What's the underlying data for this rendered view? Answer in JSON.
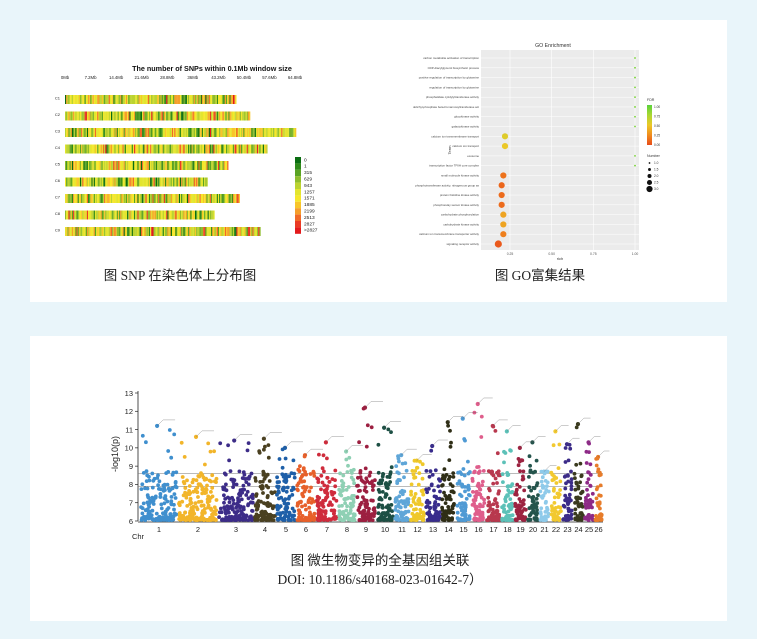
{
  "captions": {
    "snp": "图 SNP 在染色体上分布图",
    "go": "图 GO富集结果",
    "gwas": "图 微生物变异的全基因组关联",
    "doi": "DOI: 10.1186/s40168-023-01642-7）"
  },
  "chart_data": [
    {
      "type": "heatmap",
      "title": "The number of SNPs within 0.1Mb window size",
      "x_ticks": [
        "0Mb",
        "7.2Mb",
        "14.4Mb",
        "21.6Mb",
        "28.8Mb",
        "36Mb",
        "43.2Mb",
        "50.4Mb",
        "57.6Mb",
        "64.8Mb"
      ],
      "rows": [
        {
          "label": "C1",
          "length_mb": 48
        },
        {
          "label": "C2",
          "length_mb": 52
        },
        {
          "label": "C3",
          "length_mb": 65
        },
        {
          "label": "C4",
          "length_mb": 57
        },
        {
          "label": "C5",
          "length_mb": 46
        },
        {
          "label": "C6",
          "length_mb": 40
        },
        {
          "label": "C7",
          "length_mb": 49
        },
        {
          "label": "C8",
          "length_mb": 42
        },
        {
          "label": "C9",
          "length_mb": 55
        }
      ],
      "legend": {
        "labels": [
          "0",
          "1",
          "315",
          "629",
          "943",
          "1257",
          "1571",
          "1885",
          "2199",
          "2513",
          "2827",
          ">2827"
        ],
        "colors": [
          "#0b6d12",
          "#2f8a1a",
          "#5aa323",
          "#8fbd2c",
          "#bcd330",
          "#e3e52e",
          "#f6e72a",
          "#f8c52a",
          "#f59e2a",
          "#f06a28",
          "#ea3b24",
          "#e31a1c"
        ]
      }
    },
    {
      "type": "scatter",
      "title": "GO Enrichment",
      "xlabel": "rich",
      "ylabel": "Term",
      "x_ticks": [
        "0.25",
        "0.50",
        "0.75",
        "1.00"
      ],
      "xlim": [
        0.1,
        1.0
      ],
      "terms": [
        {
          "term": "carbon metabolite activation of transcription",
          "rich": 1.0,
          "fdr": 0.9,
          "number": 1
        },
        {
          "term": "CDP-diacylglycerol biosynthetic process",
          "rich": 1.0,
          "fdr": 0.9,
          "number": 1
        },
        {
          "term": "positive regulation of transcription by glutamine",
          "rich": 1.0,
          "fdr": 0.9,
          "number": 1
        },
        {
          "term": "regulation of transcription by glutamine",
          "rich": 1.0,
          "fdr": 0.9,
          "number": 1
        },
        {
          "term": "phosphatidate cytidylyltransferase activity",
          "rich": 1.0,
          "fdr": 0.9,
          "number": 1
        },
        {
          "term": "dolichyl-phosphate beta-D-mannosyltransferase act",
          "rich": 1.0,
          "fdr": 0.9,
          "number": 1
        },
        {
          "term": "glucokinase activity",
          "rich": 1.0,
          "fdr": 0.9,
          "number": 1
        },
        {
          "term": "galactokinase activity",
          "rich": 1.0,
          "fdr": 0.9,
          "number": 1
        },
        {
          "term": "calcium ion transmembrane transport",
          "rich": 0.22,
          "fdr": 0.55,
          "number": 3
        },
        {
          "term": "calcium ion transport",
          "rich": 0.22,
          "fdr": 0.5,
          "number": 3
        },
        {
          "term": "exosome",
          "rich": 1.0,
          "fdr": 0.9,
          "number": 1
        },
        {
          "term": "transcription factor TFIIH core complex",
          "rich": 1.0,
          "fdr": 0.9,
          "number": 1
        },
        {
          "term": "small molecule kinase activity",
          "rich": 0.21,
          "fdr": 0.15,
          "number": 3
        },
        {
          "term": "phosphotransferase activity, nitrogenous group as",
          "rich": 0.2,
          "fdr": 0.1,
          "number": 3
        },
        {
          "term": "protein histidine kinase activity",
          "rich": 0.2,
          "fdr": 0.12,
          "number": 3
        },
        {
          "term": "phosphorelay sensor kinase activity",
          "rich": 0.2,
          "fdr": 0.12,
          "number": 3
        },
        {
          "term": "carbohydrate phosphorylation",
          "rich": 0.21,
          "fdr": 0.35,
          "number": 3
        },
        {
          "term": "carbohydrate kinase activity",
          "rich": 0.21,
          "fdr": 0.35,
          "number": 3
        },
        {
          "term": "calcium ion transmembrane transporter activity",
          "rich": 0.21,
          "fdr": 0.2,
          "number": 3
        },
        {
          "term": "signaling receptor activity",
          "rich": 0.18,
          "fdr": 0.05,
          "number": 3.5
        }
      ],
      "fdr_legend": {
        "title": "FDR",
        "labels": [
          "1.00",
          "0.75",
          "0.50",
          "0.25",
          "0.00"
        ]
      },
      "number_legend": {
        "title": "Number",
        "labels": [
          "1.0",
          "1.5",
          "2.0",
          "2.5",
          "3.0"
        ]
      }
    },
    {
      "type": "scatter",
      "subtype": "manhattan",
      "ylabel": "-log10(p)",
      "xlabel": "Chr",
      "y_ticks": [
        6,
        7,
        8,
        9,
        10,
        11,
        12,
        13
      ],
      "ylim": [
        6,
        13
      ],
      "thresholds": [
        7.9,
        8.6
      ],
      "chromosomes": [
        "1",
        "2",
        "3",
        "4",
        "5",
        "6",
        "7",
        "8",
        "9",
        "10",
        "11",
        "12",
        "13",
        "14",
        "15",
        "16",
        "17",
        "18",
        "19",
        "20",
        "21",
        "22",
        "23",
        "24",
        "25",
        "26"
      ],
      "colors": [
        "#3f8fce",
        "#f2b52a",
        "#3c2c88",
        "#4a4020",
        "#1e5fa8",
        "#e7602a",
        "#cf2c3c",
        "#8fd0b4",
        "#9c1f40",
        "#1d4f44",
        "#5fa6d8",
        "#efc82a",
        "#382c8c",
        "#2f2e16",
        "#4f9ad4",
        "#df5e8c",
        "#b8384e",
        "#5cc1b8",
        "#9c2341",
        "#24544c",
        "#8ecaea",
        "#f2c930",
        "#3c2c88",
        "#3a3a1e",
        "#8e2a87",
        "#e77c2a"
      ],
      "peak_max": [
        11.2,
        10.6,
        10.4,
        10.5,
        10.0,
        9.6,
        10.3,
        9.8,
        12.2,
        11.1,
        9.6,
        9.3,
        10.1,
        11.4,
        11.6,
        12.4,
        11.2,
        10.9,
        10.0,
        10.3,
        8.7,
        10.9,
        10.2,
        11.3,
        10.3,
        9.5
      ]
    }
  ]
}
